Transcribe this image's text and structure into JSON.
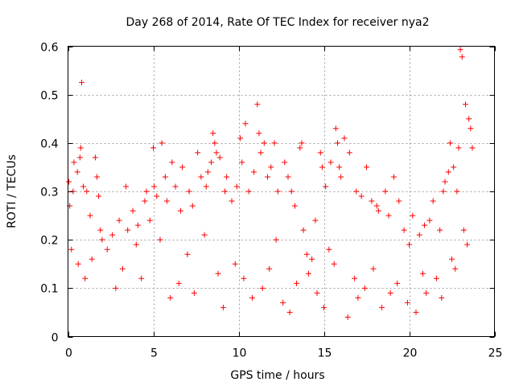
{
  "chart_data": {
    "type": "scatter",
    "title": "Day 268 of 2014, Rate Of TEC Index for receiver nya2",
    "xlabel": "GPS time / hours",
    "ylabel": "ROTI / TECUs",
    "xlim": [
      0,
      25
    ],
    "ylim": [
      0,
      0.6
    ],
    "x_ticks": [
      "0",
      "5",
      "10",
      "15",
      "20",
      "25"
    ],
    "y_ticks": [
      "0",
      "0.1",
      "0.2",
      "0.3",
      "0.4",
      "0.5",
      "0.6"
    ],
    "grid": true,
    "legend": "none",
    "marker": "plus",
    "color": "#ff0000",
    "series": [
      {
        "x": [
          0.8,
          0.05,
          0.1,
          0.3,
          0.35,
          0.55,
          0.7,
          0.75,
          0.9,
          1.1,
          1.3,
          1.6,
          1.7,
          1.8,
          1.9,
          2.0,
          2.3,
          2.6,
          3.0,
          3.4,
          3.5,
          3.8,
          4.1,
          4.5,
          4.6,
          4.8,
          5.0,
          5.05,
          5.2,
          5.5,
          5.7,
          5.8,
          6.1,
          6.3,
          6.6,
          6.7,
          7.1,
          7.3,
          7.6,
          7.8,
          8.1,
          8.2,
          8.4,
          8.5,
          8.6,
          8.7,
          8.9,
          9.2,
          9.3,
          9.6,
          9.9,
          10.1,
          10.2,
          10.4,
          10.6,
          10.9,
          11.1,
          11.2,
          11.3,
          11.5,
          11.7,
          11.9,
          12.1,
          12.3,
          12.7,
          12.9,
          13.1,
          13.3,
          13.6,
          13.7,
          13.8,
          14.0,
          14.3,
          14.5,
          14.8,
          14.9,
          15.1,
          15.4,
          15.7,
          15.8,
          15.9,
          16.0,
          16.2,
          16.5,
          16.9,
          17.2,
          17.5,
          17.8,
          18.1,
          18.2,
          18.6,
          18.8,
          19.1,
          19.4,
          19.7,
          20.0,
          20.2,
          20.6,
          20.9,
          21.2,
          21.4,
          21.8,
          22.0,
          22.1,
          22.3,
          22.4,
          22.6,
          22.8,
          22.9,
          23.0,
          23.1,
          23.3,
          23.5,
          23.6,
          23.7,
          0.2,
          0.6,
          1.0,
          1.4,
          2.8,
          3.2,
          4.0,
          4.3,
          5.4,
          6.0,
          6.5,
          7.0,
          7.4,
          8.0,
          8.8,
          9.1,
          9.8,
          10.3,
          10.8,
          11.4,
          11.8,
          12.2,
          12.6,
          13.0,
          13.4,
          14.1,
          14.6,
          15.0,
          15.3,
          15.6,
          16.4,
          16.8,
          17.0,
          17.4,
          17.9,
          18.4,
          18.9,
          19.3,
          19.9,
          20.4,
          20.8,
          21.0,
          21.6,
          21.9,
          22.5,
          22.7,
          23.2,
          23.4
        ],
        "y": [
          0.525,
          0.32,
          0.27,
          0.3,
          0.36,
          0.34,
          0.37,
          0.39,
          0.31,
          0.3,
          0.25,
          0.37,
          0.33,
          0.29,
          0.22,
          0.2,
          0.18,
          0.21,
          0.24,
          0.31,
          0.22,
          0.26,
          0.23,
          0.28,
          0.3,
          0.24,
          0.39,
          0.31,
          0.29,
          0.4,
          0.33,
          0.28,
          0.36,
          0.31,
          0.26,
          0.35,
          0.3,
          0.27,
          0.38,
          0.33,
          0.31,
          0.34,
          0.36,
          0.42,
          0.4,
          0.38,
          0.37,
          0.3,
          0.33,
          0.28,
          0.31,
          0.41,
          0.36,
          0.44,
          0.3,
          0.34,
          0.48,
          0.42,
          0.38,
          0.4,
          0.33,
          0.35,
          0.4,
          0.3,
          0.36,
          0.33,
          0.3,
          0.27,
          0.39,
          0.4,
          0.22,
          0.17,
          0.16,
          0.24,
          0.38,
          0.35,
          0.31,
          0.36,
          0.43,
          0.4,
          0.35,
          0.33,
          0.41,
          0.38,
          0.3,
          0.29,
          0.35,
          0.28,
          0.27,
          0.26,
          0.3,
          0.25,
          0.33,
          0.28,
          0.22,
          0.19,
          0.25,
          0.21,
          0.23,
          0.24,
          0.28,
          0.22,
          0.3,
          0.32,
          0.34,
          0.4,
          0.35,
          0.3,
          0.39,
          0.593,
          0.578,
          0.48,
          0.45,
          0.43,
          0.39,
          0.18,
          0.15,
          0.12,
          0.16,
          0.1,
          0.14,
          0.19,
          0.12,
          0.2,
          0.08,
          0.11,
          0.17,
          0.09,
          0.21,
          0.13,
          0.06,
          0.15,
          0.12,
          0.08,
          0.1,
          0.14,
          0.2,
          0.07,
          0.05,
          0.11,
          0.13,
          0.09,
          0.06,
          0.18,
          0.15,
          0.04,
          0.12,
          0.08,
          0.1,
          0.14,
          0.06,
          0.09,
          0.11,
          0.07,
          0.05,
          0.13,
          0.09,
          0.12,
          0.08,
          0.16,
          0.14,
          0.22,
          0.19
        ]
      }
    ]
  }
}
